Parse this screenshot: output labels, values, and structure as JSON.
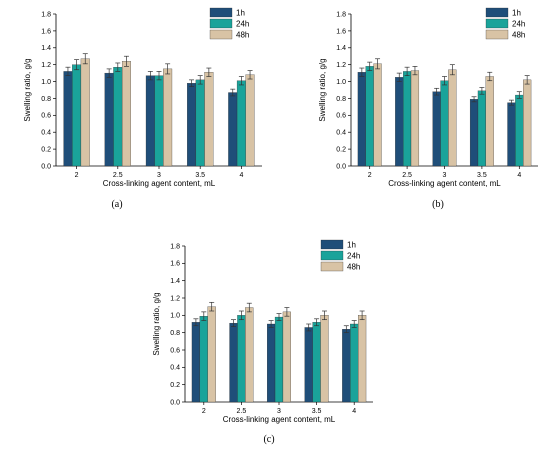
{
  "chart_data": [
    {
      "type": "bar",
      "panel_label": "(a)",
      "categories": [
        "2",
        "2.5",
        "3",
        "3.5",
        "4"
      ],
      "series": [
        {
          "name": "1h",
          "values": [
            1.12,
            1.1,
            1.07,
            0.98,
            0.87
          ],
          "errors": [
            0.05,
            0.05,
            0.05,
            0.04,
            0.04
          ]
        },
        {
          "name": "24h",
          "values": [
            1.2,
            1.17,
            1.07,
            1.02,
            1.01
          ],
          "errors": [
            0.06,
            0.05,
            0.05,
            0.05,
            0.05
          ]
        },
        {
          "name": "48h",
          "values": [
            1.27,
            1.24,
            1.15,
            1.11,
            1.08
          ],
          "errors": [
            0.06,
            0.06,
            0.06,
            0.05,
            0.05
          ]
        }
      ],
      "xlabel": "Cross-linking agent content, mL",
      "ylabel": "Swelling ratio, g/g",
      "ylim": [
        0.0,
        1.8
      ],
      "yticks": [
        "0.0",
        "0.2",
        "0.4",
        "0.6",
        "0.8",
        "1.0",
        "1.2",
        "1.4",
        "1.6",
        "1.8"
      ],
      "legend_position": "top-right",
      "grid": false
    },
    {
      "type": "bar",
      "panel_label": "(b)",
      "categories": [
        "2",
        "2.5",
        "3",
        "3.5",
        "4"
      ],
      "series": [
        {
          "name": "1h",
          "values": [
            1.11,
            1.05,
            0.88,
            0.79,
            0.75
          ],
          "errors": [
            0.05,
            0.05,
            0.04,
            0.03,
            0.03
          ]
        },
        {
          "name": "24h",
          "values": [
            1.18,
            1.12,
            1.01,
            0.89,
            0.84
          ],
          "errors": [
            0.05,
            0.05,
            0.05,
            0.04,
            0.04
          ]
        },
        {
          "name": "48h",
          "values": [
            1.21,
            1.13,
            1.14,
            1.06,
            1.02
          ],
          "errors": [
            0.06,
            0.05,
            0.06,
            0.05,
            0.05
          ]
        }
      ],
      "xlabel": "Cross-linking agent content, mL",
      "ylabel": "Swelling ratio, g/g",
      "ylim": [
        0.0,
        1.8
      ],
      "yticks": [
        "0.0",
        "0.2",
        "0.4",
        "0.6",
        "0.8",
        "1.0",
        "1.2",
        "1.4",
        "1.6",
        "1.8"
      ],
      "legend_position": "top-right",
      "grid": false
    },
    {
      "type": "bar",
      "panel_label": "(c)",
      "categories": [
        "2",
        "2.5",
        "3",
        "3.5",
        "4"
      ],
      "series": [
        {
          "name": "1h",
          "values": [
            0.92,
            0.91,
            0.9,
            0.86,
            0.84
          ],
          "errors": [
            0.04,
            0.04,
            0.04,
            0.04,
            0.04
          ]
        },
        {
          "name": "24h",
          "values": [
            0.99,
            1.0,
            0.98,
            0.92,
            0.9
          ],
          "errors": [
            0.05,
            0.05,
            0.04,
            0.04,
            0.04
          ]
        },
        {
          "name": "48h",
          "values": [
            1.1,
            1.09,
            1.04,
            1.0,
            1.0
          ],
          "errors": [
            0.05,
            0.05,
            0.05,
            0.05,
            0.05
          ]
        }
      ],
      "xlabel": "Cross-linking agent content, mL",
      "ylabel": "Swelling ratio, g/g",
      "ylim": [
        0.0,
        1.8
      ],
      "yticks": [
        "0.0",
        "0.2",
        "0.4",
        "0.6",
        "0.8",
        "1.0",
        "1.2",
        "1.4",
        "1.6",
        "1.8"
      ],
      "legend_position": "top-right",
      "grid": false
    }
  ],
  "colors": {
    "series": [
      "#1f4e79",
      "#1aa39a",
      "#d8c3a5"
    ],
    "error_bar": "#333333",
    "axis": "#000000"
  }
}
